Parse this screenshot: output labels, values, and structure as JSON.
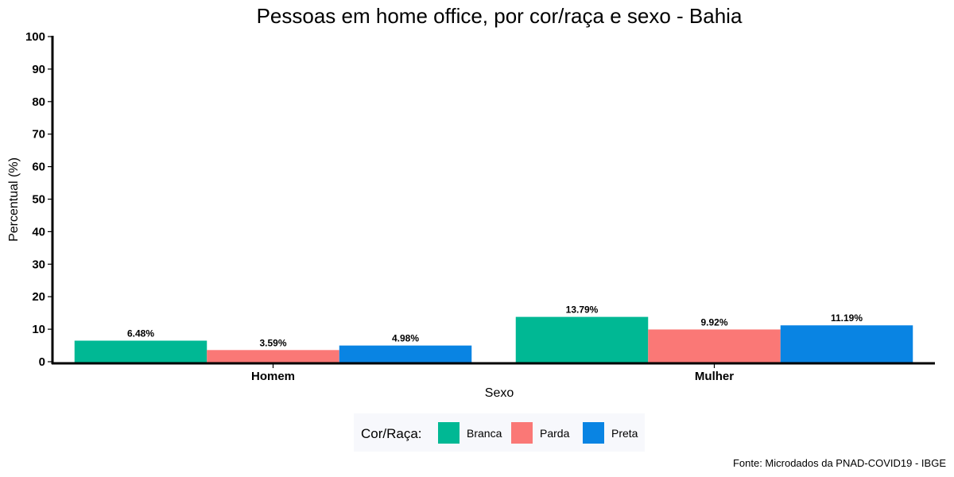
{
  "chart_data": {
    "type": "bar",
    "title": "Pessoas em home office, por cor/raça e sexo - Bahia",
    "xlabel": "Sexo",
    "ylabel": "Percentual (%)",
    "categories": [
      "Homem",
      "Mulher"
    ],
    "series": [
      {
        "name": "Branca",
        "color": "#00B894",
        "values": [
          6.48,
          13.79
        ],
        "labels": [
          "6.48%",
          "13.79%"
        ]
      },
      {
        "name": "Parda",
        "color": "#FA7876",
        "values": [
          3.59,
          9.92
        ],
        "labels": [
          "3.59%",
          "9.92%"
        ]
      },
      {
        "name": "Preta",
        "color": "#0984E3",
        "values": [
          4.98,
          11.19
        ],
        "labels": [
          "4.98%",
          "11.19%"
        ]
      }
    ],
    "ylim": [
      0,
      100
    ],
    "yticks": [
      0,
      10,
      20,
      30,
      40,
      50,
      60,
      70,
      80,
      90,
      100
    ],
    "grid": false,
    "legend": {
      "title": "Cor/Raça:",
      "position": "bottom"
    },
    "source": "Fonte: Microdados da PNAD-COVID19 - IBGE"
  }
}
